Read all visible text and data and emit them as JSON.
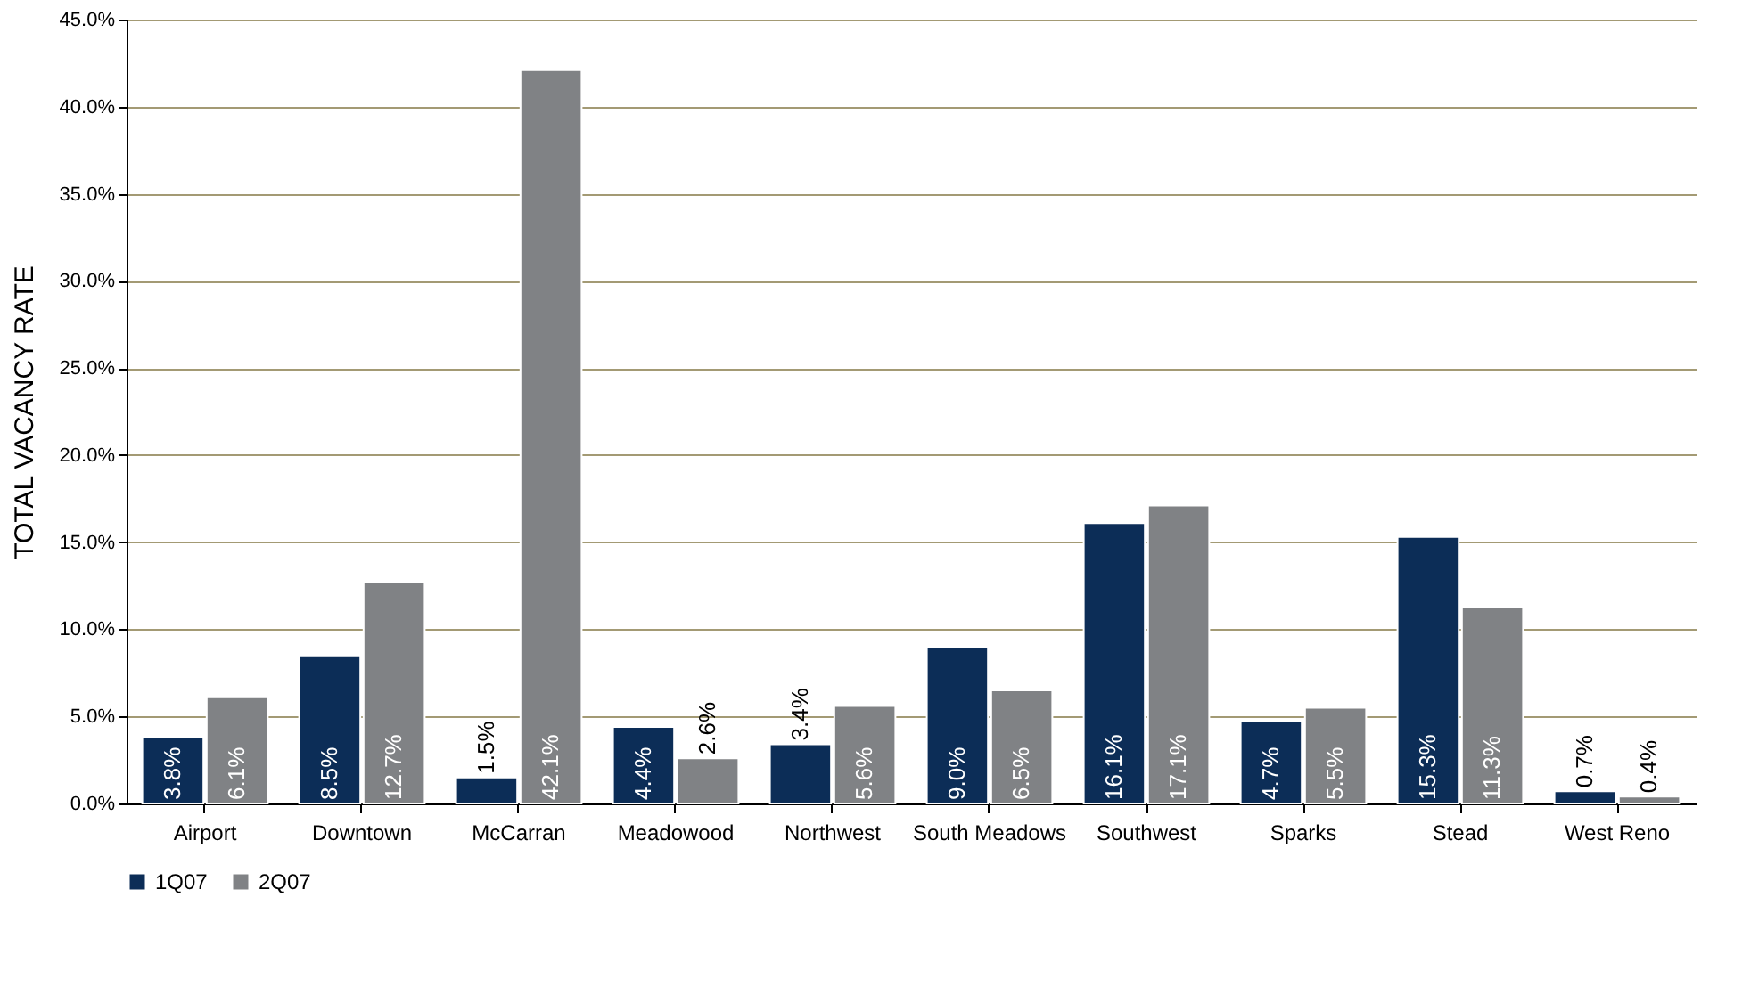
{
  "chart_data": {
    "type": "bar",
    "ylabel": "TOTAL VACANCY RATE",
    "categories": [
      "Airport",
      "Downtown",
      "McCarran",
      "Meadowood",
      "Northwest",
      "South Meadows",
      "Southwest",
      "Sparks",
      "Stead",
      "West Reno"
    ],
    "series": [
      {
        "name": "1Q07",
        "color": "#0c2d57",
        "values": [
          3.8,
          8.5,
          1.5,
          4.4,
          3.4,
          9.0,
          16.1,
          4.7,
          15.3,
          0.7
        ],
        "value_labels": [
          "3.8%",
          "8.5%",
          "1.5%",
          "4.4%",
          "3.4%",
          "9.0%",
          "16.1%",
          "4.7%",
          "15.3%",
          "0.7%"
        ]
      },
      {
        "name": "2Q07",
        "color": "#808285",
        "values": [
          6.1,
          12.7,
          42.1,
          2.6,
          5.6,
          6.5,
          17.1,
          5.5,
          11.3,
          0.4
        ],
        "value_labels": [
          "6.1%",
          "12.7%",
          "42.1%",
          "2.6%",
          "5.6%",
          "6.5%",
          "17.1%",
          "5.5%",
          "11.3%",
          "0.4%"
        ]
      }
    ],
    "ylim": [
      0,
      45
    ],
    "yticks": [
      {
        "value": 0,
        "label": "0.0%"
      },
      {
        "value": 5,
        "label": "5.0%"
      },
      {
        "value": 10,
        "label": "10.0%"
      },
      {
        "value": 15,
        "label": "15.0%"
      },
      {
        "value": 20,
        "label": "20.0%"
      },
      {
        "value": 25,
        "label": "25.0%"
      },
      {
        "value": 30,
        "label": "30.0%"
      },
      {
        "value": 35,
        "label": "35.0%"
      },
      {
        "value": 40,
        "label": "40.0%"
      },
      {
        "value": 45,
        "label": "45.0%"
      }
    ],
    "grid": "y",
    "legend": "bottom"
  }
}
